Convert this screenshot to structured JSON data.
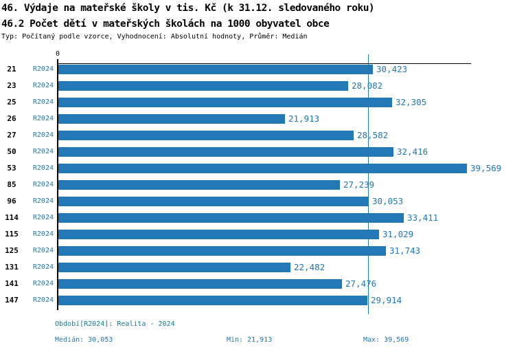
{
  "header": {
    "title_line1": "46. Výdaje na mateřské školy v tis. Kč (k 31.12. sledovaného roku)",
    "title_line2": "46.2 Počet dětí v mateřských školách na 1000 obyvatel obce",
    "meta": "Typ: Počítaný podle vzorce, Vyhodnocení: Absolutní hodnoty, Průměr: Medián"
  },
  "chart_data": {
    "type": "bar",
    "orientation": "horizontal",
    "title": "46. Výdaje na mateřské školy v tis. Kč (k 31.12. sledovaného roku)",
    "subtitle": "46.2 Počet dětí v mateřských školách na 1000 obyvatel obce",
    "series_label": "R2024",
    "categories": [
      "21",
      "23",
      "25",
      "26",
      "27",
      "50",
      "53",
      "85",
      "96",
      "114",
      "115",
      "125",
      "131",
      "141",
      "147"
    ],
    "values": [
      30.423,
      28.082,
      32.305,
      21.913,
      28.582,
      32.416,
      39.569,
      27.239,
      30.053,
      33.411,
      31.029,
      31.743,
      22.482,
      27.476,
      29.914
    ],
    "value_labels": [
      "30,423",
      "28,082",
      "32,305",
      "21,913",
      "28,582",
      "32,416",
      "39,569",
      "27,239",
      "30,053",
      "33,411",
      "31,029",
      "31,743",
      "22,482",
      "27,476",
      "29,914"
    ],
    "x_axis": {
      "zero_label": "0",
      "min": 0,
      "max_shown": 40.0
    },
    "median_line_value": 30.053,
    "grid": false,
    "legend_position": "none"
  },
  "footer": {
    "period": "Období[R2024]: Realita - 2024",
    "median": "Medián: 30,053",
    "min": "Min: 21,913",
    "max": "Max: 39,569"
  },
  "colors": {
    "bar_blue": "#2277b4",
    "label_blue": "#2277b4",
    "period_teal": "#0e7d8f",
    "axis_black": "#000000"
  }
}
